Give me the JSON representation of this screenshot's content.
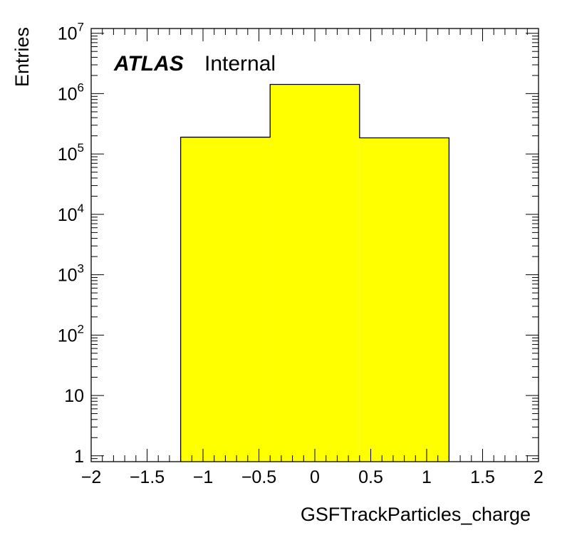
{
  "chart_data": {
    "type": "bar",
    "histogram": true,
    "bin_edges": [
      -1.2,
      -0.4,
      0.4,
      1.2
    ],
    "values": [
      190000,
      1420000,
      185000
    ],
    "bar_color": "#ffff00",
    "edge_color": "#000000",
    "xlabel": "GSFTrackParticles_charge",
    "ylabel": "Entries",
    "xlim": [
      -2,
      2
    ],
    "ylim": [
      0.8,
      12000000
    ],
    "yscale": "log",
    "grid": false,
    "x_ticks": [
      {
        "value": -2,
        "label": "−2"
      },
      {
        "value": -1.5,
        "label": "−1.5"
      },
      {
        "value": -1,
        "label": "−1"
      },
      {
        "value": -0.5,
        "label": "−0.5"
      },
      {
        "value": 0,
        "label": "0"
      },
      {
        "value": 0.5,
        "label": "0.5"
      },
      {
        "value": 1,
        "label": "1"
      },
      {
        "value": 1.5,
        "label": "1.5"
      },
      {
        "value": 2,
        "label": "2"
      }
    ],
    "y_ticks": [
      {
        "value": 1,
        "base": "1",
        "exp": ""
      },
      {
        "value": 10,
        "base": "10",
        "exp": ""
      },
      {
        "value": 100,
        "base": "10",
        "exp": "2"
      },
      {
        "value": 1000,
        "base": "10",
        "exp": "3"
      },
      {
        "value": 10000,
        "base": "10",
        "exp": "4"
      },
      {
        "value": 100000,
        "base": "10",
        "exp": "5"
      },
      {
        "value": 1000000,
        "base": "10",
        "exp": "6"
      },
      {
        "value": 10000000,
        "base": "10",
        "exp": "7"
      }
    ],
    "annotations": {
      "experiment": "ATLAS",
      "status": "Internal"
    }
  }
}
